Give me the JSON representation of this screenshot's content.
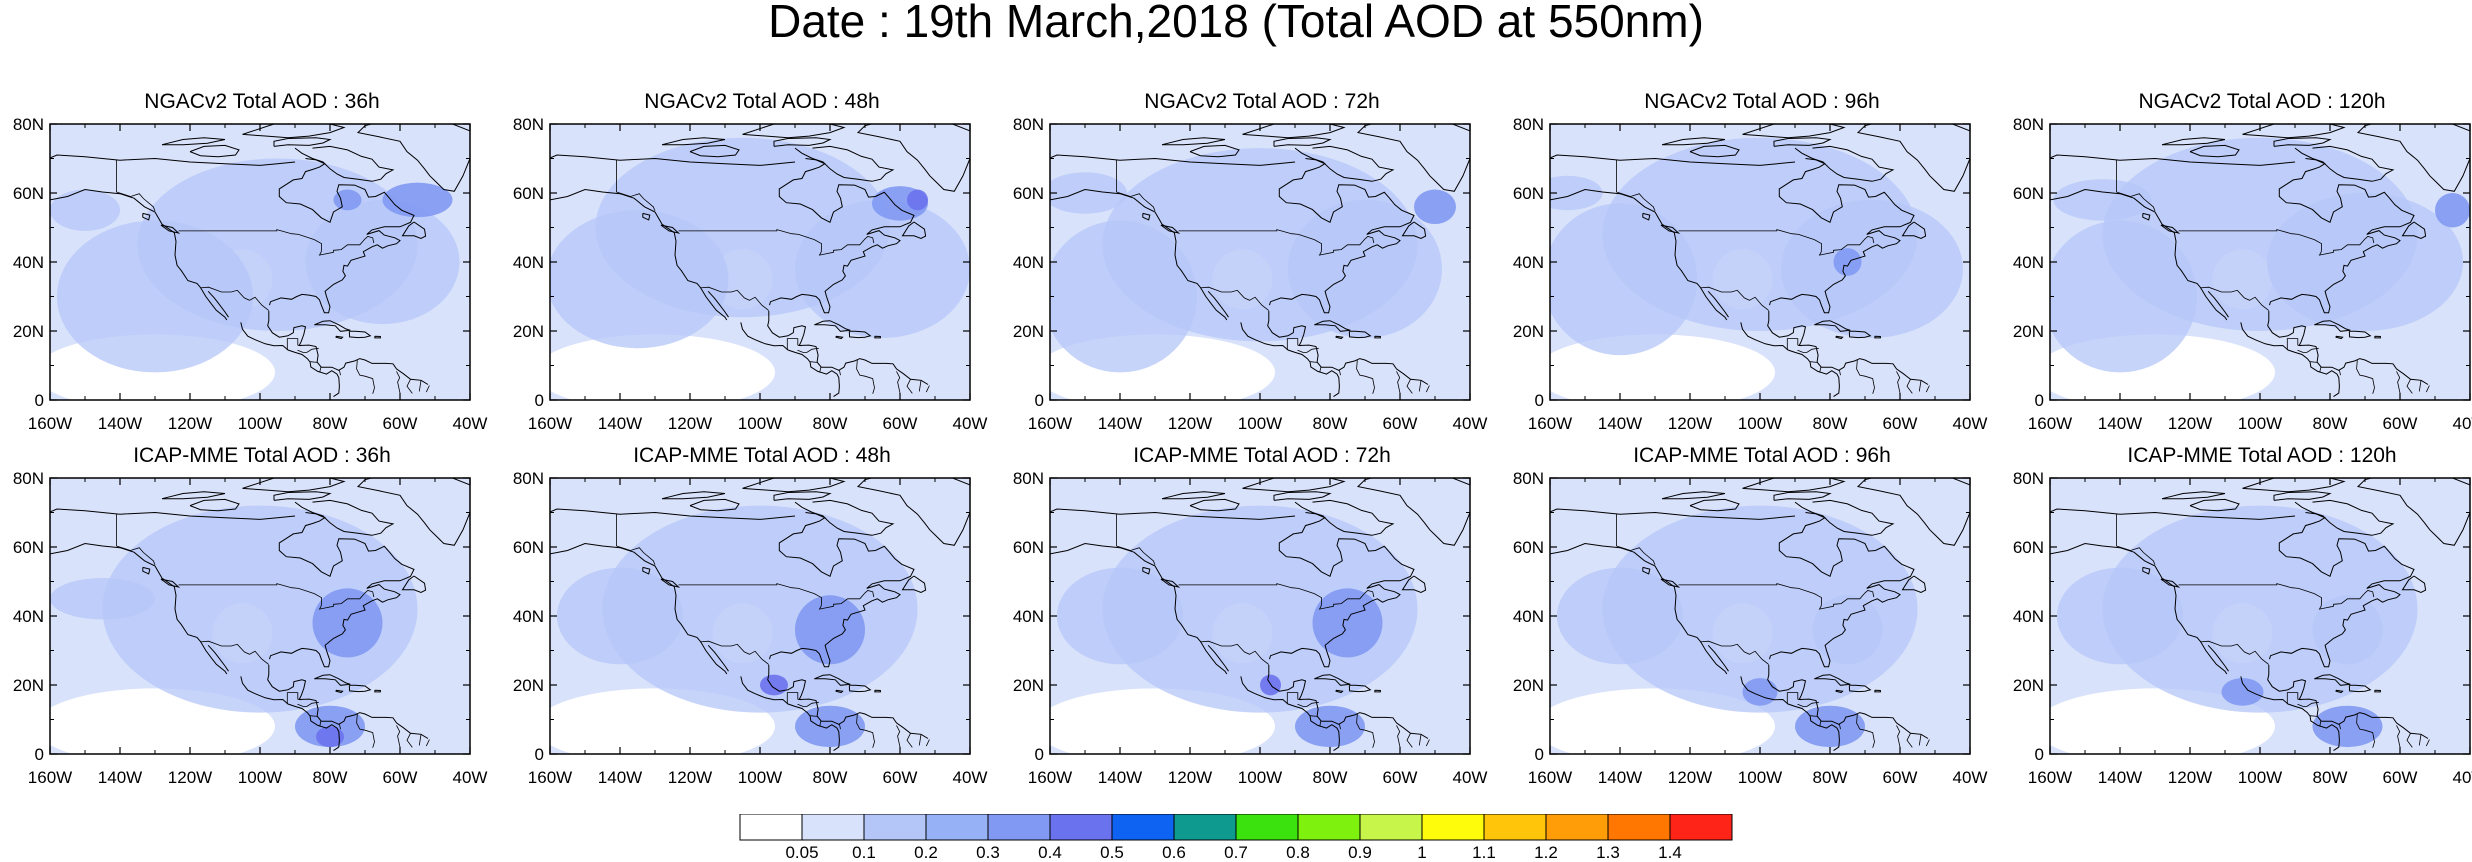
{
  "title": "Date : 19th March,2018 (Total AOD at 550nm)",
  "axes": {
    "lat_labels": [
      "80N",
      "60N",
      "40N",
      "20N",
      "0"
    ],
    "lon_labels": [
      "160W",
      "140W",
      "120W",
      "100W",
      "80W",
      "60W",
      "40W"
    ],
    "lat_range": [
      0,
      80
    ],
    "lon_range": [
      -160,
      -40
    ]
  },
  "panels": [
    {
      "title": "NGACv2 Total AOD : 36h",
      "model": "NGACv2",
      "lead": "36h"
    },
    {
      "title": "NGACv2 Total AOD : 48h",
      "model": "NGACv2",
      "lead": "48h"
    },
    {
      "title": "NGACv2 Total AOD : 72h",
      "model": "NGACv2",
      "lead": "72h"
    },
    {
      "title": "NGACv2 Total AOD : 96h",
      "model": "NGACv2",
      "lead": "96h"
    },
    {
      "title": "NGACv2 Total AOD : 120h",
      "model": "NGACv2",
      "lead": "120h"
    },
    {
      "title": "ICAP-MME Total AOD : 36h",
      "model": "ICAP-MME",
      "lead": "36h"
    },
    {
      "title": "ICAP-MME Total AOD : 48h",
      "model": "ICAP-MME",
      "lead": "48h"
    },
    {
      "title": "ICAP-MME Total AOD : 72h",
      "model": "ICAP-MME",
      "lead": "72h"
    },
    {
      "title": "ICAP-MME Total AOD : 96h",
      "model": "ICAP-MME",
      "lead": "96h"
    },
    {
      "title": "ICAP-MME Total AOD : 120h",
      "model": "ICAP-MME",
      "lead": "120h"
    }
  ],
  "colorbar": {
    "levels": [
      "0.05",
      "0.1",
      "0.2",
      "0.3",
      "0.4",
      "0.5",
      "0.6",
      "0.7",
      "0.8",
      "0.9",
      "1",
      "1.1",
      "1.2",
      "1.3",
      "1.4"
    ],
    "colors": [
      "#ffffff",
      "#d9e2fb",
      "#b4c6f8",
      "#96b1f5",
      "#8199f2",
      "#6a72ed",
      "#0f63f2",
      "#0e9a8e",
      "#3ce20e",
      "#7ef20e",
      "#c8f54a",
      "#fffc0b",
      "#ffc50b",
      "#ff9d08",
      "#ff7600",
      "#fe2417"
    ]
  },
  "map_colors": {
    "background": "#ffffff",
    "low": "#d9e2fb",
    "mid": "#b4c6f8",
    "high": "#8199f2",
    "peak": "#6a72ed"
  }
}
